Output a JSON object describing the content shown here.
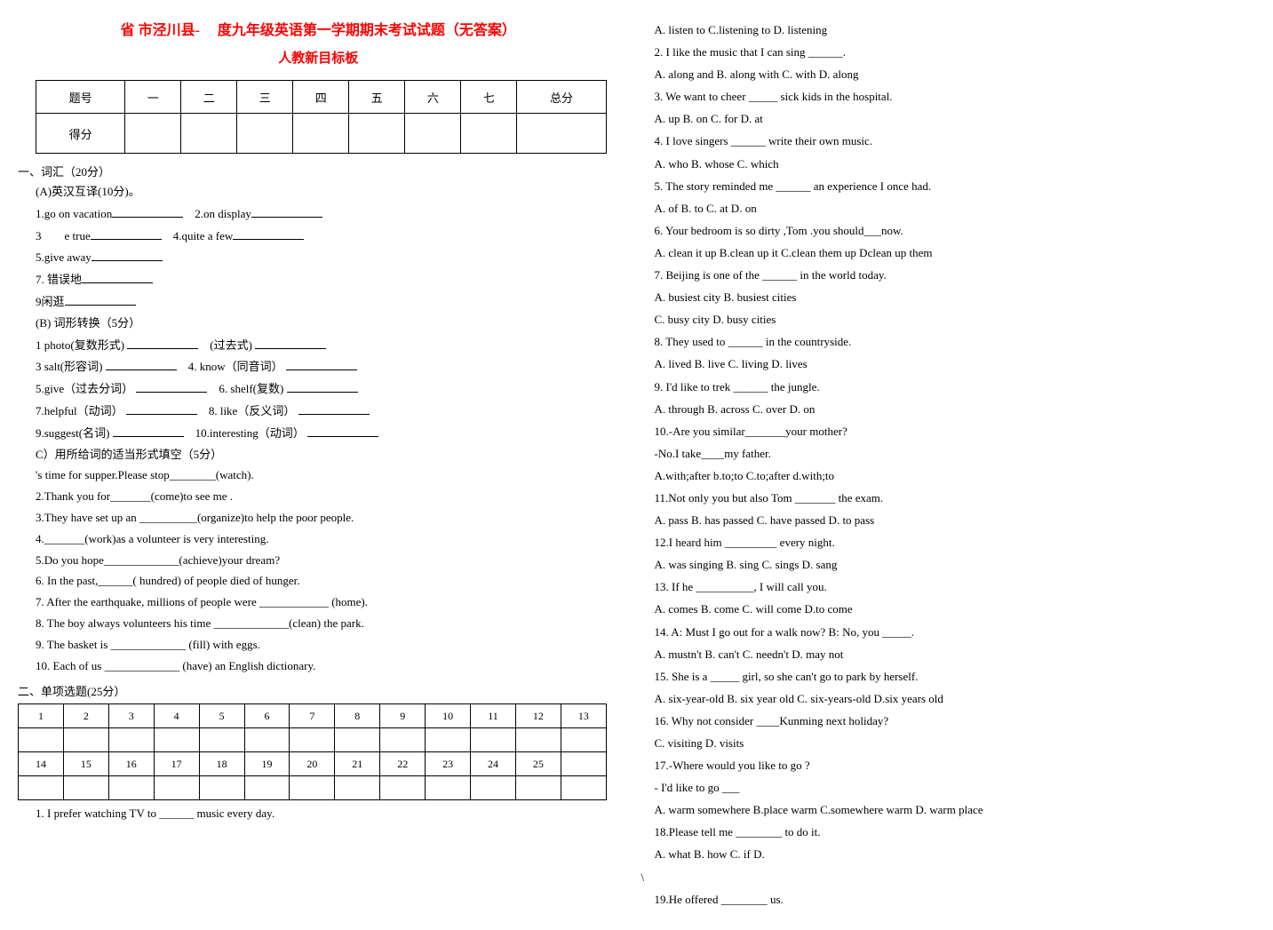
{
  "title": "省 市泾川县-　 度九年级英语第一学期期末考试试题（无答案）",
  "subtitle": "人教新目标板",
  "scoreTable": {
    "headers": [
      "题号",
      "一",
      "二",
      "三",
      "四",
      "五",
      "六",
      "七",
      "总分"
    ],
    "rowLabel": "得分"
  },
  "sec1": {
    "header": "一、词汇（20分）",
    "partA": "(A)英汉互译(10分)。",
    "a_items": [
      {
        "left": "1.go on vacation",
        "right": "2.on display"
      },
      {
        "left": "3　　e true",
        "right": "4.quite a few"
      },
      {
        "left": "5.give away",
        "right": ""
      },
      {
        "left": "7. 错误地",
        "right": ""
      },
      {
        "left": "9闲逛",
        "right": ""
      }
    ],
    "partB": "(B) 词形转换（5分）",
    "b_items": [
      {
        "left": "1 photo(复数形式)",
        "right": "(过去式)"
      },
      {
        "left": "3 salt(形容词)",
        "right": "4. know（同音词）"
      },
      {
        "left": "5.give（过去分词）",
        "right": "6. shelf(复数)"
      },
      {
        "left": "7.helpful（动词）",
        "right": "8. like（反义词）"
      },
      {
        "left": "9.suggest(名词)",
        "right": "10.interesting（动词）"
      }
    ],
    "partC": "C）用所给词的适当形式填空（5分）",
    "c_items": [
      "'s time for supper.Please stop________(watch).",
      "2.Thank you for_______(come)to see me .",
      "3.They have set up an __________(organize)to help the poor people.",
      "4._______(work)as a volunteer is very interesting.",
      "5.Do you hope_____________(achieve)your dream?",
      "6. In the past,______( hundred) of people died of hunger.",
      "7. After the earthquake, millions of people were ____________ (home).",
      "8. The boy always volunteers his time _____________(clean) the park.",
      "9. The basket is _____________ (fill) with eggs.",
      "10. Each of us _____________ (have) an English dictionary."
    ]
  },
  "sec2": {
    "header": "二、单项选题(25分）",
    "row1": [
      "1",
      "2",
      "3",
      "4",
      "5",
      "6",
      "7",
      "8",
      "9",
      "10",
      "11",
      "12",
      "13"
    ],
    "row2": [
      "14",
      "15",
      "16",
      "17",
      "18",
      "19",
      "20",
      "21",
      "22",
      "23",
      "24",
      "25",
      ""
    ],
    "footer": "1. I prefer watching TV to ______ music every day."
  },
  "rightCol": [
    "A. listen to      C.listening to  D. listening",
    "2. I like the music that I can sing ______.",
    "A. along and  B. along with  C. with  D. along",
    "3. We want to cheer _____ sick kids in the hospital.",
    "A. up   B. on     C. for    D. at",
    "4. I love singers ______ write their own music.",
    "A. who     B. whose    C. which",
    "5. The story reminded me ______ an experience I once had.",
    "A. of    B. to    C. at    D. on",
    "6. Your bedroom is so dirty ,Tom .you should___now.",
    "A. clean it up  B.clean up it  C.clean them up  Dclean up them",
    "7. Beijing is one of the ______ in the world today.",
    "A. busiest city    B. busiest cities",
    "C. busy city     D. busy cities",
    "8. They used to ______ in the countryside.",
    "A. lived        B. live          C. living        D. lives",
    "9. I'd like to trek ______ the jungle.",
    "A. through  B. across    C. over    D. on",
    "10.-Are you similar_______your mother?",
    "-No.I take____my father.",
    "A.with;after    b.to;to    C.to;after    d.with;to",
    "11.Not only you but also Tom _______ the exam.",
    "A. pass       B. has passed        C. have passed       D. to pass",
    "12.I heard him _________ every night.",
    "A. was singing         B. sing                C. sings         D. sang",
    "13. If he __________, I will call you.",
    "A. comes     B. come   C. will come D.to come",
    "14. A: Must I go out for a walk now?    B: No, you _____.",
    "A. mustn't   B. can't   C. needn't   D. may not",
    "15. She is a _____ girl, so she can't go to park by herself.",
    "A. six-year-old  B. six year old  C. six-years-old  D.six years old",
    "16. Why not consider ____Kunming next holiday?",
    "                     C. visiting        D. visits",
    "17.-Where would you like to go ?",
    "   - I'd like to go ___",
    "A. warm somewhere B.place warm   C.somewhere warm    D. warm place",
    "18.Please tell me ________ to do it.",
    "A. what           B. how               C. if                        D.",
    "",
    "19.He offered ________ us."
  ]
}
